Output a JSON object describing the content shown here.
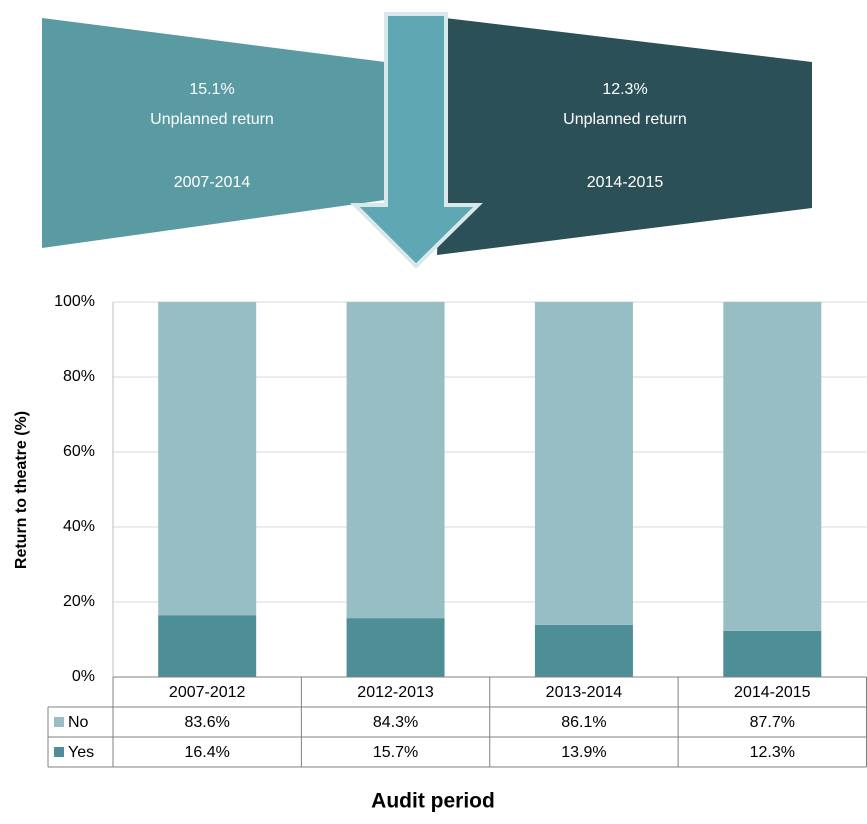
{
  "chart_data": {
    "type": "bar",
    "stacked": true,
    "ylabel": "Return to theatre (%)",
    "xlabel": "Audit period",
    "categories": [
      "2007-2012",
      "2012-2013",
      "2013-2014",
      "2014-2015"
    ],
    "series": [
      {
        "name": "No",
        "color": "#97bec5",
        "values": [
          83.6,
          84.3,
          86.1,
          87.7
        ],
        "value_labels": [
          "83.6%",
          "84.3%",
          "86.1%",
          "87.7%"
        ]
      },
      {
        "name": "Yes",
        "color": "#4d8e97",
        "values": [
          16.4,
          15.7,
          13.9,
          12.3
        ],
        "value_labels": [
          "16.4%",
          "15.7%",
          "13.9%",
          "12.3%"
        ]
      }
    ],
    "ylim": [
      0,
      100
    ],
    "yticks": [
      {
        "value": 0,
        "label": "0%"
      },
      {
        "value": 20,
        "label": "20%"
      },
      {
        "value": 40,
        "label": "40%"
      },
      {
        "value": 60,
        "label": "60%"
      },
      {
        "value": 80,
        "label": "80%"
      },
      {
        "value": 100,
        "label": "100%"
      }
    ],
    "grid": true,
    "annotations": [
      {
        "lines": [
          "15.1%",
          "Unplanned return",
          "2007-2014"
        ]
      },
      {
        "lines": [
          "12.3%",
          "Unplanned return",
          "2014-2015"
        ]
      }
    ]
  }
}
